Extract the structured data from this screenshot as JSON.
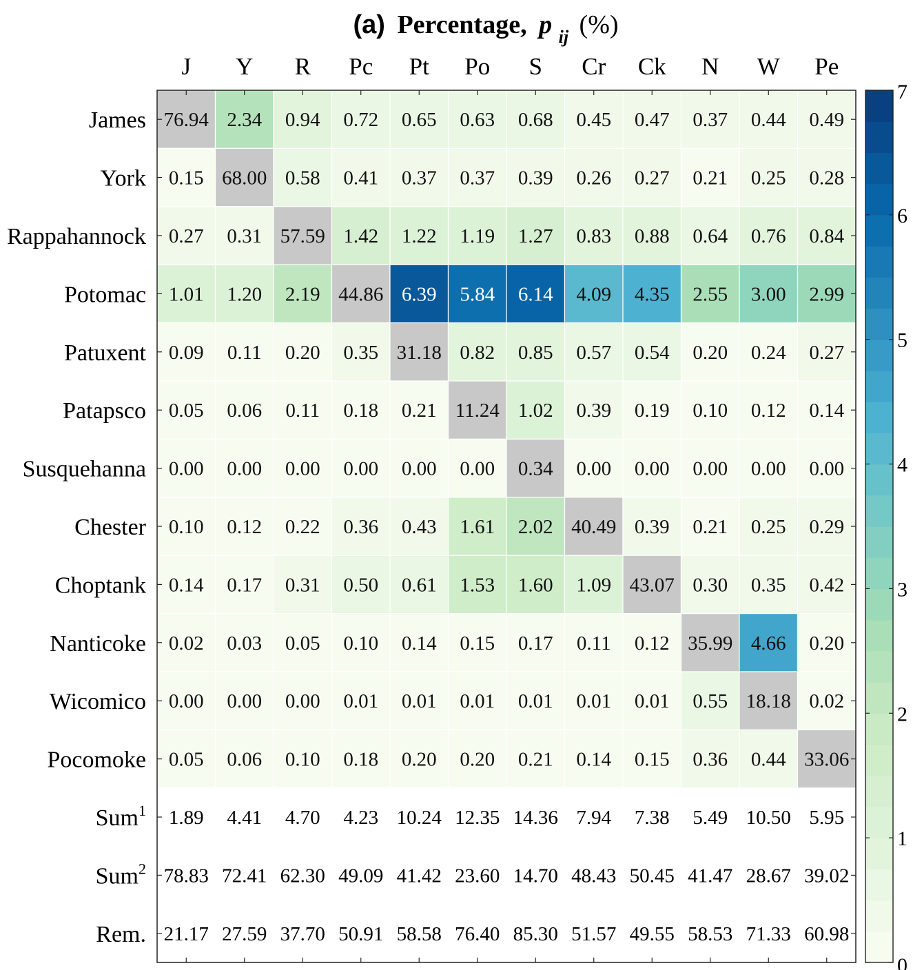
{
  "chart_data": {
    "type": "heatmap",
    "title": {
      "prefix": "(a)",
      "label": "Percentage,",
      "symbol": "p",
      "subscript": "ij",
      "unit": "(%)"
    },
    "columns": [
      "J",
      "Y",
      "R",
      "Pc",
      "Pt",
      "Po",
      "S",
      "Cr",
      "Ck",
      "N",
      "W",
      "Pe"
    ],
    "rows": [
      "James",
      "York",
      "Rappahannock",
      "Potomac",
      "Patuxent",
      "Patapsco",
      "Susquehanna",
      "Chester",
      "Choptank",
      "Nanticoke",
      "Wicomico",
      "Pocomoke"
    ],
    "values": [
      [
        76.94,
        2.34,
        0.94,
        0.72,
        0.65,
        0.63,
        0.68,
        0.45,
        0.47,
        0.37,
        0.44,
        0.49
      ],
      [
        0.15,
        68.0,
        0.58,
        0.41,
        0.37,
        0.37,
        0.39,
        0.26,
        0.27,
        0.21,
        0.25,
        0.28
      ],
      [
        0.27,
        0.31,
        57.59,
        1.42,
        1.22,
        1.19,
        1.27,
        0.83,
        0.88,
        0.64,
        0.76,
        0.84
      ],
      [
        1.01,
        1.2,
        2.19,
        44.86,
        6.39,
        5.84,
        6.14,
        4.09,
        4.35,
        2.55,
        3.0,
        2.99
      ],
      [
        0.09,
        0.11,
        0.2,
        0.35,
        31.18,
        0.82,
        0.85,
        0.57,
        0.54,
        0.2,
        0.24,
        0.27
      ],
      [
        0.05,
        0.06,
        0.11,
        0.18,
        0.21,
        11.24,
        1.02,
        0.39,
        0.19,
        0.1,
        0.12,
        0.14
      ],
      [
        0.0,
        0.0,
        0.0,
        0.0,
        0.0,
        0.0,
        0.34,
        0.0,
        0.0,
        0.0,
        0.0,
        0.0
      ],
      [
        0.1,
        0.12,
        0.22,
        0.36,
        0.43,
        1.61,
        2.02,
        40.49,
        0.39,
        0.21,
        0.25,
        0.29
      ],
      [
        0.14,
        0.17,
        0.31,
        0.5,
        0.61,
        1.53,
        1.6,
        1.09,
        43.07,
        0.3,
        0.35,
        0.42
      ],
      [
        0.02,
        0.03,
        0.05,
        0.1,
        0.14,
        0.15,
        0.17,
        0.11,
        0.12,
        35.99,
        4.66,
        0.2
      ],
      [
        0.0,
        0.0,
        0.0,
        0.01,
        0.01,
        0.01,
        0.01,
        0.01,
        0.01,
        0.55,
        18.18,
        0.02
      ],
      [
        0.05,
        0.06,
        0.1,
        0.18,
        0.2,
        0.2,
        0.21,
        0.14,
        0.15,
        0.36,
        0.44,
        33.06
      ]
    ],
    "diagonal_color": "#c8c8c8",
    "summary_rows": [
      {
        "label": "Sum",
        "superscript": "1",
        "values": [
          "1.89",
          "4.41",
          "4.70",
          "4.23",
          "10.24",
          "12.35",
          "14.36",
          "7.94",
          "7.38",
          "5.49",
          "10.50",
          "5.95"
        ]
      },
      {
        "label": "Sum",
        "superscript": "2",
        "values": [
          "78.83",
          "72.41",
          "62.30",
          "49.09",
          "41.42",
          "23.60",
          "14.70",
          "48.43",
          "50.45",
          "41.47",
          "28.67",
          "39.02"
        ]
      },
      {
        "label": "Rem.",
        "superscript": "",
        "values": [
          "21.17",
          "27.59",
          "37.70",
          "50.91",
          "58.58",
          "76.40",
          "85.30",
          "51.57",
          "49.55",
          "58.53",
          "71.33",
          "60.98"
        ]
      }
    ],
    "colorbar": {
      "range": [
        0,
        7
      ],
      "ticks": [
        "0",
        "1",
        "2",
        "3",
        "4",
        "5",
        "6",
        "7"
      ],
      "colormap": "GnBu",
      "stops": [
        "#f7fcf0",
        "#e0f3db",
        "#ccebc5",
        "#a8ddb5",
        "#7bccc4",
        "#4eb3d3",
        "#2b8cbe",
        "#0868ac",
        "#084081"
      ]
    }
  }
}
